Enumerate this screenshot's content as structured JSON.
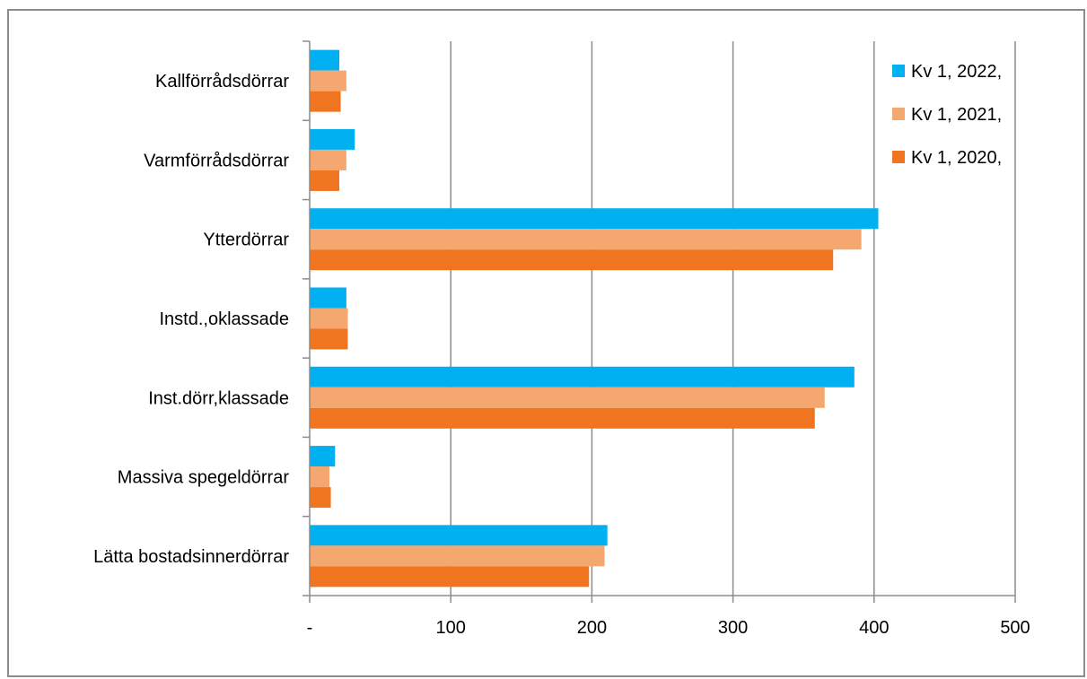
{
  "chart_data": {
    "type": "bar",
    "orientation": "horizontal",
    "title": "",
    "xlabel": "",
    "ylabel": "",
    "xlim": [
      0,
      500
    ],
    "x_ticks": [
      0,
      100,
      200,
      300,
      400,
      500
    ],
    "x_tick_labels": [
      "-",
      "100",
      "200",
      "300",
      "400",
      "500"
    ],
    "grid": "vertical",
    "legend_position": "top-right",
    "categories": [
      "Kallförrådsdörrar",
      "Varmförrådsdörrar",
      "Ytterdörrar",
      "Instd.,oklassade",
      "Inst.dörr,klassade",
      "Massiva spegeldörrar",
      "Lätta bostadsinnerdörrar"
    ],
    "series": [
      {
        "name": "Kv 1, 2022,",
        "color": "#00b0f0",
        "values": [
          21,
          32,
          403,
          26,
          386,
          18,
          211
        ]
      },
      {
        "name": "Kv 1, 2021,",
        "color": "#f4a870",
        "values": [
          26,
          26,
          391,
          27,
          365,
          14,
          209
        ]
      },
      {
        "name": "Kv 1, 2020,",
        "color": "#ef7520",
        "values": [
          22,
          21,
          371,
          27,
          358,
          15,
          198
        ]
      }
    ]
  }
}
